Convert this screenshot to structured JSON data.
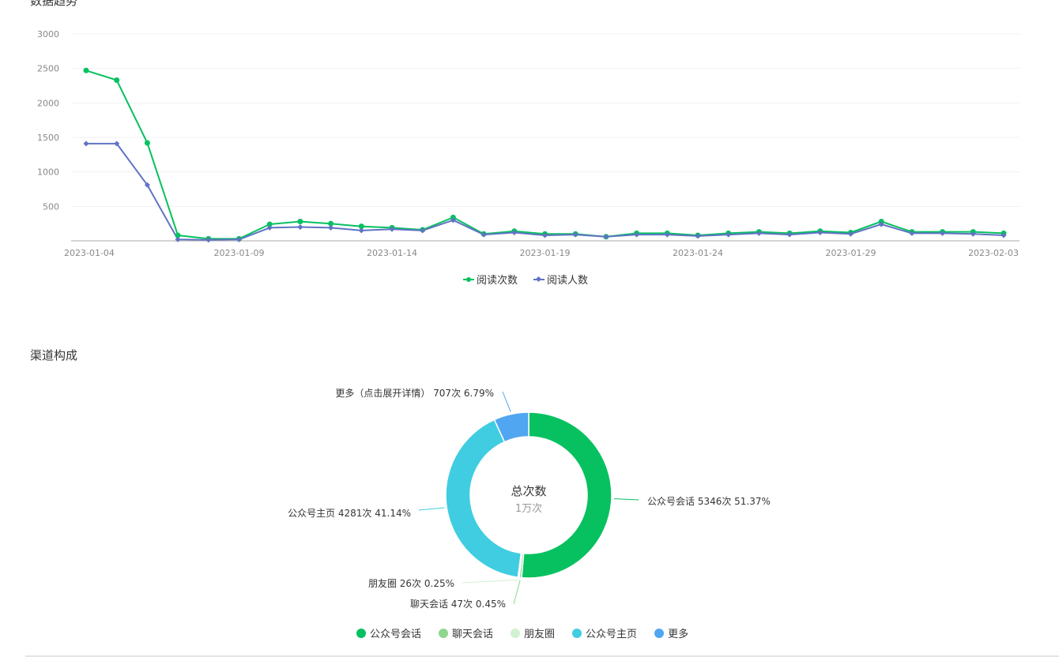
{
  "sections": {
    "trend_title": "数据趋势",
    "channel_title": "渠道构成"
  },
  "chart_data": [
    {
      "type": "line",
      "title": "数据趋势",
      "x": [
        "2023-01-04",
        "2023-01-05",
        "2023-01-06",
        "2023-01-07",
        "2023-01-08",
        "2023-01-09",
        "2023-01-10",
        "2023-01-11",
        "2023-01-12",
        "2023-01-13",
        "2023-01-14",
        "2023-01-15",
        "2023-01-16",
        "2023-01-17",
        "2023-01-18",
        "2023-01-19",
        "2023-01-20",
        "2023-01-21",
        "2023-01-22",
        "2023-01-23",
        "2023-01-24",
        "2023-01-25",
        "2023-01-26",
        "2023-01-27",
        "2023-01-28",
        "2023-01-29",
        "2023-01-30",
        "2023-01-31",
        "2023-02-01",
        "2023-02-02",
        "2023-02-03"
      ],
      "x_tick_labels": [
        "2023-01-04",
        "2023-01-09",
        "2023-01-14",
        "2023-01-19",
        "2023-01-24",
        "2023-01-29",
        "2023-02-03"
      ],
      "y_ticks": [
        500,
        1000,
        1500,
        2000,
        2500,
        3000
      ],
      "ylim": [
        0,
        3000
      ],
      "grid": true,
      "legend_position": "bottom-center",
      "series": [
        {
          "name": "阅读次数",
          "color": "#07c160",
          "marker": "circle",
          "values": [
            2470,
            2330,
            1420,
            80,
            30,
            30,
            240,
            280,
            250,
            210,
            190,
            160,
            340,
            100,
            140,
            100,
            100,
            60,
            110,
            110,
            80,
            110,
            130,
            110,
            140,
            120,
            280,
            130,
            130,
            130,
            110
          ]
        },
        {
          "name": "阅读人数",
          "color": "#6173c4",
          "marker": "diamond",
          "values": [
            1410,
            1410,
            810,
            20,
            15,
            20,
            190,
            200,
            190,
            150,
            170,
            150,
            300,
            90,
            120,
            80,
            90,
            60,
            90,
            90,
            70,
            90,
            110,
            90,
            120,
            100,
            240,
            110,
            110,
            100,
            80
          ]
        }
      ]
    },
    {
      "type": "pie",
      "title": "渠道构成",
      "variant": "donut",
      "center_label": "总次数",
      "center_value": "1万次",
      "legend_position": "bottom-center",
      "slices": [
        {
          "name": "公众号会话",
          "value": 5346,
          "percent": 51.37,
          "label": "公众号会话 5346次 51.37%",
          "color": "#07c160"
        },
        {
          "name": "聊天会话",
          "value": 47,
          "percent": 0.45,
          "label": "聊天会话 47次 0.45%",
          "color": "#8fd68f"
        },
        {
          "name": "朋友圈",
          "value": 26,
          "percent": 0.25,
          "label": "朋友圈 26次 0.25%",
          "color": "#d2f1d2"
        },
        {
          "name": "公众号主页",
          "value": 4281,
          "percent": 41.14,
          "label": "公众号主页 4281次 41.14%",
          "color": "#40cde2"
        },
        {
          "name": "更多",
          "value": 707,
          "percent": 6.79,
          "label": "更多（点击展开详情） 707次 6.79%",
          "color": "#50a6f0"
        }
      ]
    }
  ]
}
